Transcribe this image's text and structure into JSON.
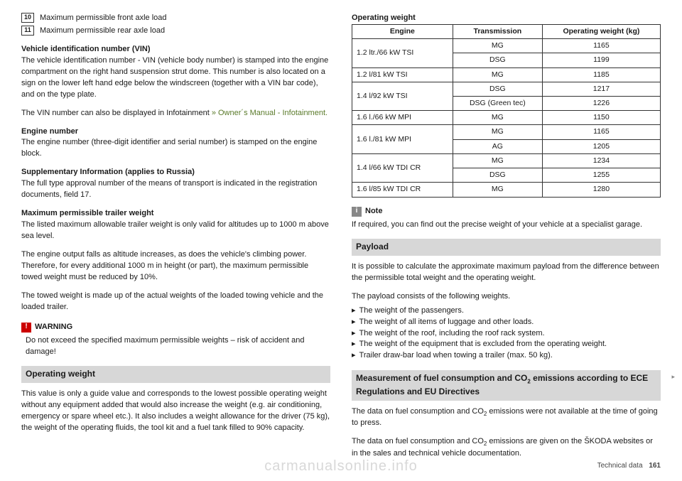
{
  "left": {
    "numbered": [
      {
        "n": "10",
        "t": "Maximum permissible front axle load"
      },
      {
        "n": "11",
        "t": "Maximum permissible rear axle load"
      }
    ],
    "vin_head": "Vehicle identification number (VIN)",
    "vin_body": "The vehicle identification number - VIN (vehicle body number) is stamped into the engine compartment on the right hand suspension strut dome. This number is also located on a sign on the lower left hand edge below the windscreen (together with a VIN bar code), and on the type plate.",
    "vin_info_pre": "The VIN number can also be displayed in Infotainment ",
    "vin_info_ref": "» Owner´s Manual - Infotainment.",
    "eng_head": "Engine number",
    "eng_body": "The engine number (three-digit identifier and serial number) is stamped on the engine block.",
    "supp_head": "Supplementary Information (applies to Russia)",
    "supp_body": "The full type approval number of the means of transport is indicated in the registration documents, field 17.",
    "trailer_head": "Maximum permissible trailer weight",
    "trailer_p1": "The listed maximum allowable trailer weight is only valid for altitudes up to 1000 m above sea level.",
    "trailer_p2": "The engine output falls as altitude increases, as does the vehicle's climbing power. Therefore, for every additional 1000 m in height (or part), the maximum permissible towed weight must be reduced by 10%.",
    "trailer_p3": "The towed weight is made up of the actual weights of the loaded towing vehicle and the loaded trailer.",
    "warn_label": "WARNING",
    "warn_body": "Do not exceed the specified maximum permissible weights – risk of accident and damage!",
    "opw_section": "Operating weight",
    "opw_body": "This value is only a guide value and corresponds to the lowest possible operating weight without any equipment added that would also increase the weight (e.g. air conditioning, emergency or spare wheel etc.). It also includes a weight allowance for the driver (75 kg), the weight of the operating fluids, the tool kit and a fuel tank filled to 90% capacity."
  },
  "right": {
    "opw_title": "Operating weight",
    "table": {
      "headers": [
        "Engine",
        "Transmission",
        "Operating weight (kg)"
      ],
      "rows": [
        {
          "eng": "1.2 ltr./66 kW TSI",
          "span": 2,
          "cells": [
            [
              "MG",
              "1165"
            ],
            [
              "DSG",
              "1199"
            ]
          ]
        },
        {
          "eng": "1.2 l/81 kW TSI",
          "span": 1,
          "cells": [
            [
              "MG",
              "1185"
            ]
          ]
        },
        {
          "eng": "1.4 l/92 kW TSI",
          "span": 2,
          "cells": [
            [
              "DSG",
              "1217"
            ],
            [
              "DSG (Green tec)",
              "1226"
            ]
          ]
        },
        {
          "eng": "1.6 l./66 kW MPI",
          "span": 1,
          "cells": [
            [
              "MG",
              "1150"
            ]
          ]
        },
        {
          "eng": "1.6 l./81 kW MPI",
          "span": 2,
          "cells": [
            [
              "MG",
              "1165"
            ],
            [
              "AG",
              "1205"
            ]
          ]
        },
        {
          "eng": "1.4 l/66 kW TDI CR",
          "span": 2,
          "cells": [
            [
              "MG",
              "1234"
            ],
            [
              "DSG",
              "1255"
            ]
          ]
        },
        {
          "eng": "1.6 l/85 kW TDI CR",
          "span": 1,
          "cells": [
            [
              "MG",
              "1280"
            ]
          ]
        }
      ]
    },
    "note_label": "Note",
    "note_body": "If required, you can find out the precise weight of your vehicle at a specialist garage.",
    "payload_section": "Payload",
    "payload_p1": "It is possible to calculate the approximate maximum payload from the difference between the permissible total weight and the operating weight.",
    "payload_p2": "The payload consists of the following weights.",
    "payload_items": [
      "The weight of the passengers.",
      "The weight of all items of luggage and other loads.",
      "The weight of the roof, including the roof rack system.",
      "The weight of the equipment that is excluded from the operating weight.",
      "Trailer draw-bar load when towing a trailer (max. 50 kg)."
    ],
    "fuel_section_pre": "Measurement of fuel consumption and CO",
    "fuel_section_post": " emissions according to ECE Regulations and EU Directives",
    "fuel_p1_pre": "The data on fuel consumption and CO",
    "fuel_p1_post": " emissions were not available at the time of going to press.",
    "fuel_p2_pre": "The data on fuel consumption and CO",
    "fuel_p2_post": " emissions are given on the ŠKODA websites or in the sales and technical vehicle documentation."
  },
  "footer": {
    "label": "Technical data",
    "page": "161"
  },
  "watermark": "carmanualsonline.info"
}
